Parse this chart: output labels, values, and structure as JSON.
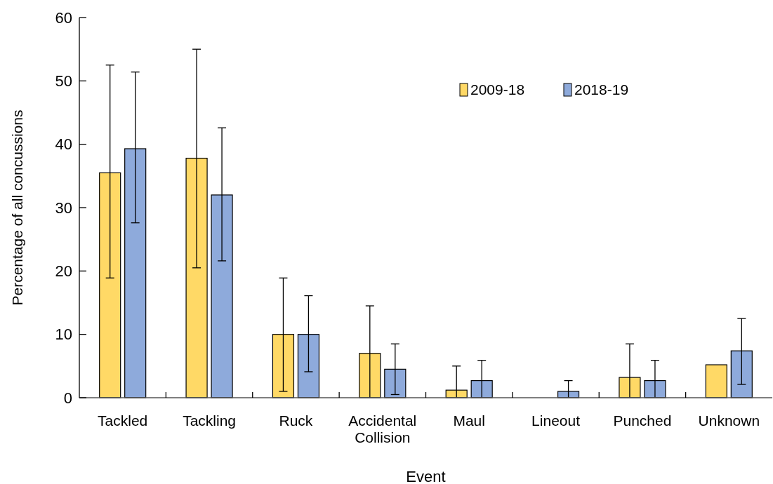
{
  "chart_data": {
    "type": "bar",
    "xlabel": "Event",
    "ylabel": "Percentage of  all concussions",
    "categories": [
      "Tackled",
      "Tackling",
      "Ruck",
      "Accidental Collision",
      "Maul",
      "Lineout",
      "Punched",
      "Unknown"
    ],
    "series": [
      {
        "name": "2009-18",
        "color": "#ffd966",
        "values": [
          35.5,
          37.8,
          10.0,
          7.0,
          1.2,
          0,
          3.2,
          5.2
        ],
        "errors": [
          [
            18.9,
            52.5
          ],
          [
            20.5,
            55.0
          ],
          [
            1.0,
            18.9
          ],
          [
            0,
            14.5
          ],
          [
            0,
            5.0
          ],
          null,
          [
            0,
            8.5
          ],
          null
        ]
      },
      {
        "name": "2018-19",
        "color": "#8eaadb",
        "values": [
          39.3,
          32.0,
          10.0,
          4.5,
          2.7,
          1.0,
          2.7,
          7.4
        ],
        "errors": [
          [
            27.6,
            51.4
          ],
          [
            21.6,
            42.6
          ],
          [
            4.1,
            16.1
          ],
          [
            0.5,
            8.5
          ],
          [
            0,
            5.9
          ],
          [
            0,
            2.7
          ],
          [
            0,
            5.9
          ],
          [
            2.1,
            12.5
          ]
        ]
      }
    ],
    "ylim": [
      0,
      60
    ],
    "yticks": [
      0,
      10,
      20,
      30,
      40,
      50,
      60
    ],
    "grid": false,
    "legend": "top right"
  }
}
